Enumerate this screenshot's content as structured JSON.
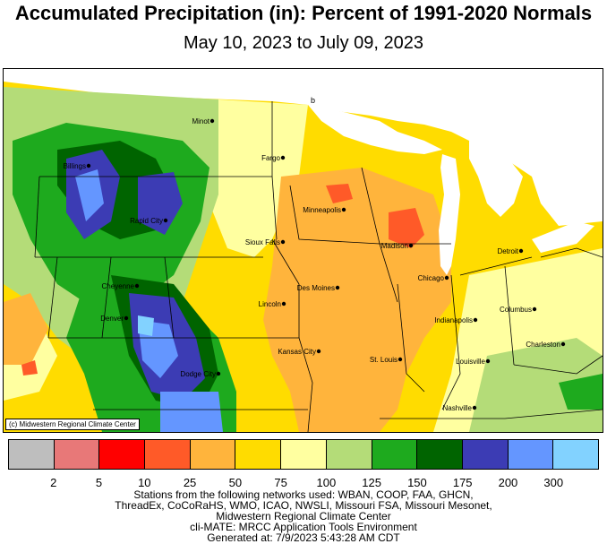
{
  "title": "Accumulated Precipitation (in): Percent of 1991-2020 Normals",
  "subtitle": "May 10, 2023 to July 09, 2023",
  "credit": "(c) Midwestern Regional Climate Center",
  "stray_mark": "b",
  "legend": {
    "colors": [
      "#bebebe",
      "#e87878",
      "#ff0000",
      "#ff5a28",
      "#ffb43c",
      "#ffdc00",
      "#ffffa0",
      "#b4dc78",
      "#1eaa1e",
      "#006400",
      "#3c3cb4",
      "#6496ff",
      "#82d2ff"
    ],
    "labels": [
      "2",
      "5",
      "10",
      "25",
      "50",
      "75",
      "100",
      "125",
      "150",
      "175",
      "200",
      "300"
    ]
  },
  "cities": [
    {
      "name": "Minot"
    },
    {
      "name": "Fargo"
    },
    {
      "name": "Billings"
    },
    {
      "name": "Rapid City"
    },
    {
      "name": "Minneapolis"
    },
    {
      "name": "Sioux Falls"
    },
    {
      "name": "Madison"
    },
    {
      "name": "Detroit"
    },
    {
      "name": "Cheyenne"
    },
    {
      "name": "Des Moines"
    },
    {
      "name": "Chicago"
    },
    {
      "name": "Lincoln"
    },
    {
      "name": "Denver"
    },
    {
      "name": "Indianapolis"
    },
    {
      "name": "Columbus"
    },
    {
      "name": "Kansas City"
    },
    {
      "name": "Charleston"
    },
    {
      "name": "St. Louis"
    },
    {
      "name": "Louisville"
    },
    {
      "name": "Dodge City"
    },
    {
      "name": "Nashville"
    }
  ],
  "footer": [
    "Stations from the following networks used: WBAN, COOP, FAA, GHCN,",
    "ThreadEx, CoCoRaHS, WMO, ICAO, NWSLI, Missouri FSA, Missouri Mesonet,",
    "Midwestern Regional Climate Center",
    "cli-MATE: MRCC Application Tools Environment",
    "Generated at: 7/9/2023 5:43:28 AM CDT"
  ]
}
